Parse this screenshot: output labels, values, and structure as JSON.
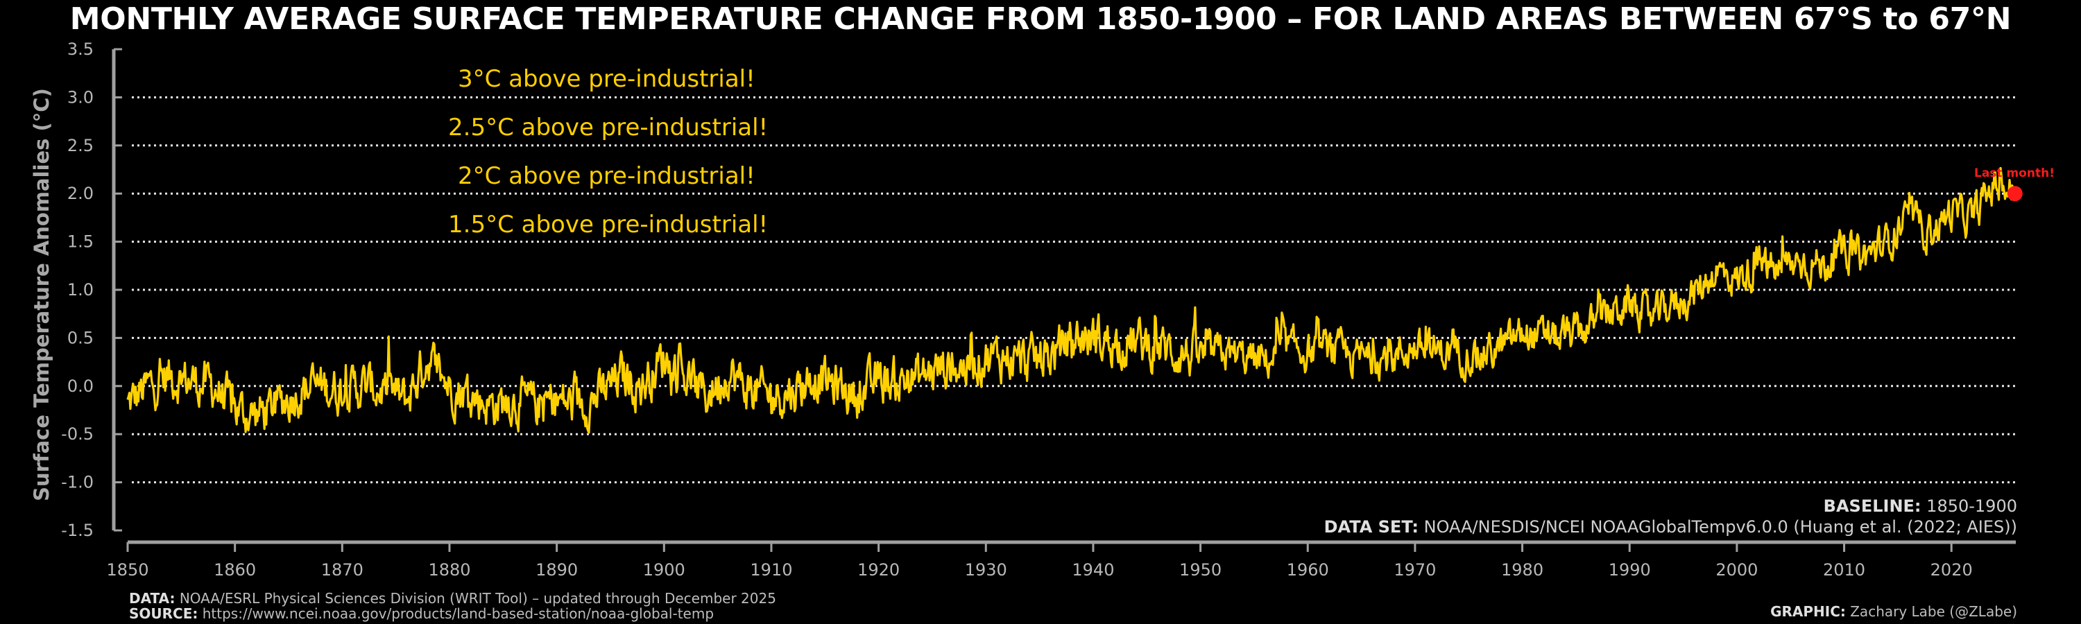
{
  "chart_data": {
    "type": "line",
    "title": "MONTHLY AVERAGE SURFACE TEMPERATURE CHANGE FROM 1850-1900 – FOR LAND AREAS BETWEEN 67°S to 67°N",
    "ylabel": "Surface Temperature Anomalies (°C)",
    "xlabel": "",
    "xlim": [
      1850,
      2026
    ],
    "ylim": [
      -1.5,
      3.5
    ],
    "x_ticks": [
      "1850",
      "1860",
      "1870",
      "1880",
      "1890",
      "1900",
      "1910",
      "1920",
      "1930",
      "1940",
      "1950",
      "1960",
      "1970",
      "1980",
      "1990",
      "2000",
      "2010",
      "2020"
    ],
    "y_ticks": [
      "-1.5",
      "-1.0",
      "-0.5",
      "0.0",
      "0.5",
      "1.0",
      "1.5",
      "2.0",
      "2.5",
      "3.0",
      "3.5"
    ],
    "grid_lines_y": [
      -1.0,
      -0.5,
      0.0,
      0.5,
      1.0,
      1.5,
      2.0,
      2.5,
      3.0
    ],
    "line_color": "#ffd100",
    "series": [
      {
        "values_note_free": true,
        "x": [
          1850.0,
          1852.0,
          1854.0,
          1856.0,
          1858.0,
          1860.0,
          1862.0,
          1864.0,
          1866.0,
          1868.0,
          1870.0,
          1872.0,
          1874.0,
          1876.0,
          1878.0,
          1880.0,
          1882.0,
          1884.0,
          1886.0,
          1888.0,
          1890.0,
          1892.0,
          1894.0,
          1896.0,
          1898.0,
          1900.0,
          1902.0,
          1904.0,
          1906.0,
          1908.0,
          1910.0,
          1912.0,
          1914.0,
          1916.0,
          1918.0,
          1920.0,
          1922.0,
          1924.0,
          1926.0,
          1928.0,
          1930.0,
          1932.0,
          1934.0,
          1936.0,
          1938.0,
          1940.0,
          1942.0,
          1944.0,
          1946.0,
          1948.0,
          1950.0,
          1952.0,
          1954.0,
          1956.0,
          1958.0,
          1960.0,
          1962.0,
          1964.0,
          1966.0,
          1968.0,
          1970.0,
          1972.0,
          1974.0,
          1976.0,
          1978.0,
          1980.0,
          1982.0,
          1984.0,
          1986.0,
          1988.0,
          1990.0,
          1992.0,
          1994.0,
          1996.0,
          1998.0,
          2000.0,
          2002.0,
          2004.0,
          2006.0,
          2008.0,
          2010.0,
          2012.0,
          2014.0,
          2016.0,
          2018.0,
          2020.0,
          2022.0,
          2024.0,
          2025.9
        ],
        "y": [
          -0.2,
          0.0,
          0.1,
          0.05,
          0.0,
          -0.25,
          -0.3,
          -0.2,
          -0.05,
          0.0,
          -0.05,
          0.0,
          -0.05,
          -0.15,
          0.3,
          0.0,
          -0.1,
          -0.2,
          -0.15,
          -0.2,
          -0.15,
          -0.2,
          -0.1,
          0.1,
          0.0,
          0.3,
          0.1,
          -0.1,
          0.15,
          -0.05,
          -0.1,
          -0.05,
          0.1,
          0.0,
          -0.1,
          0.05,
          0.05,
          0.1,
          0.2,
          0.2,
          0.3,
          0.3,
          0.25,
          0.3,
          0.5,
          0.5,
          0.45,
          0.45,
          0.4,
          0.35,
          0.3,
          0.35,
          0.3,
          0.25,
          0.4,
          0.35,
          0.4,
          0.3,
          0.3,
          0.3,
          0.4,
          0.35,
          0.35,
          0.3,
          0.4,
          0.55,
          0.5,
          0.5,
          0.6,
          0.75,
          0.85,
          0.7,
          0.85,
          0.95,
          1.2,
          1.1,
          1.25,
          1.2,
          1.3,
          1.25,
          1.4,
          1.35,
          1.5,
          1.75,
          1.6,
          1.8,
          1.75,
          2.1,
          2.0
        ]
      }
    ],
    "annotations": [
      {
        "text": "3°C above pre-industrial!"
      },
      {
        "text": "2.5°C above pre-industrial!"
      },
      {
        "text": "2°C above pre-industrial!"
      },
      {
        "text": "1.5°C above pre-industrial!"
      }
    ],
    "last_point": {
      "x": 2025.92,
      "y": 2.0,
      "label": "Last month!",
      "color": "#ff1a1a"
    }
  },
  "info": {
    "baseline_label": "BASELINE:",
    "baseline_value": "1850-1900",
    "dataset_label": "DATA SET:",
    "dataset_value": "NOAA/NESDIS/NCEI NOAAGlobalTempv6.0.0 (Huang et al. (2022; AIES))"
  },
  "footer": {
    "data_label": "DATA:",
    "data_value": "NOAA/ESRL Physical Sciences Division (WRIT Tool) – updated through December 2025",
    "source_label": "SOURCE:",
    "source_value": "https://www.ncei.noaa.gov/products/land-based-station/noaa-global-temp",
    "graphic_label": "GRAPHIC:",
    "graphic_value": "Zachary Labe (@ZLabe)"
  }
}
